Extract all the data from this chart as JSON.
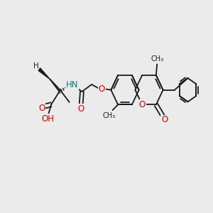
{
  "background_color": "#ebebeb",
  "bond_color": "#1a1a1a",
  "bond_width": 1.3,
  "atom_colors": {
    "O": "#e00000",
    "N": "#0000cc",
    "H_on_N": "#008080",
    "C": "#1a1a1a"
  },
  "font_size_atoms": 8.5,
  "font_size_small": 7.5,
  "xlim": [
    0,
    11
  ],
  "ylim": [
    0,
    9
  ]
}
